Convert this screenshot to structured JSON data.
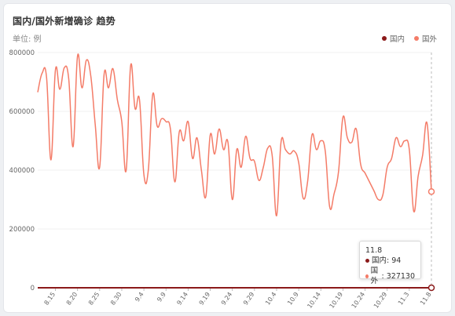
{
  "title": "国内/国外新增确诊 趋势",
  "unit_label": "单位: 例",
  "legend": [
    {
      "label": "国内",
      "color": "#8b1a1a"
    },
    {
      "label": "国外",
      "color": "#f47c68"
    }
  ],
  "tooltip": {
    "date": "11.8",
    "rows": [
      {
        "label": "国内",
        "value": "94",
        "color": "#8b1a1a"
      },
      {
        "label": "国外",
        "value": "327130",
        "color": "#f47c68"
      }
    ]
  },
  "chart_data": {
    "type": "line",
    "title": "国内/国外新增确诊 趋势",
    "ylabel": "单位: 例",
    "ylim": [
      0,
      800000
    ],
    "yticks": [
      0,
      200000,
      400000,
      600000,
      800000
    ],
    "xtick_labels": [
      "8.15",
      "8.20",
      "8.25",
      "8.30",
      "9.4",
      "9.9",
      "9.14",
      "9.19",
      "9.24",
      "9.29",
      "10.4",
      "10.9",
      "10.14",
      "10.19",
      "10.24",
      "10.29",
      "11.3",
      "11.8"
    ],
    "x": [
      "8.11",
      "8.12",
      "8.13",
      "8.14",
      "8.15",
      "8.16",
      "8.17",
      "8.18",
      "8.19",
      "8.20",
      "8.21",
      "8.22",
      "8.23",
      "8.24",
      "8.25",
      "8.26",
      "8.27",
      "8.28",
      "8.29",
      "8.30",
      "8.31",
      "9.1",
      "9.2",
      "9.3",
      "9.4",
      "9.5",
      "9.6",
      "9.7",
      "9.8",
      "9.9",
      "9.10",
      "9.11",
      "9.12",
      "9.13",
      "9.14",
      "9.15",
      "9.16",
      "9.17",
      "9.18",
      "9.19",
      "9.20",
      "9.21",
      "9.22",
      "9.23",
      "9.24",
      "9.25",
      "9.26",
      "9.27",
      "9.28",
      "9.29",
      "9.30",
      "10.1",
      "10.2",
      "10.3",
      "10.4",
      "10.5",
      "10.6",
      "10.7",
      "10.8",
      "10.9",
      "10.10",
      "10.11",
      "10.12",
      "10.13",
      "10.14",
      "10.15",
      "10.16",
      "10.17",
      "10.18",
      "10.19",
      "10.20",
      "10.21",
      "10.22",
      "10.23",
      "10.24",
      "10.25",
      "10.26",
      "10.27",
      "10.28",
      "10.29",
      "10.30",
      "10.31",
      "11.1",
      "11.2",
      "11.3",
      "11.4",
      "11.5",
      "11.6",
      "11.7",
      "11.8"
    ],
    "series": [
      {
        "name": "国内",
        "color": "#8b1a1a",
        "values": [
          60,
          55,
          70,
          48,
          62,
          53,
          58,
          71,
          65,
          80,
          56,
          49,
          60,
          66,
          70,
          61,
          52,
          58,
          63,
          77,
          82,
          69,
          57,
          60,
          72,
          66,
          55,
          48,
          61,
          50,
          43,
          58,
          51,
          47,
          62,
          70,
          55,
          49,
          68,
          73,
          64,
          59,
          51,
          60,
          66,
          57,
          63,
          70,
          74,
          68,
          80,
          76,
          62,
          58,
          71,
          66,
          80,
          77,
          69,
          84,
          73,
          90,
          81,
          85,
          78,
          96,
          88,
          72,
          79,
          87,
          91,
          83,
          95,
          99,
          88,
          84,
          90,
          86,
          97,
          102,
          93,
          89,
          98,
          104,
          92,
          87,
          95,
          100,
          91,
          94
        ]
      },
      {
        "name": "国外",
        "color": "#f47c68",
        "values": [
          665000,
          730000,
          715000,
          435000,
          740000,
          675000,
          748000,
          712000,
          480000,
          788000,
          680000,
          774000,
          720000,
          555000,
          410000,
          725000,
          680000,
          745000,
          640000,
          565000,
          400000,
          755000,
          610000,
          640000,
          385000,
          400000,
          658000,
          550000,
          575000,
          565000,
          540000,
          360000,
          530000,
          500000,
          565000,
          440000,
          510000,
          400000,
          310000,
          520000,
          455000,
          540000,
          470000,
          495000,
          300000,
          470000,
          410000,
          515000,
          440000,
          430000,
          365000,
          410000,
          475000,
          450000,
          245000,
          495000,
          470000,
          455000,
          465000,
          425000,
          305000,
          360000,
          520000,
          470000,
          500000,
          465000,
          275000,
          320000,
          395000,
          580000,
          510000,
          495000,
          540000,
          420000,
          390000,
          360000,
          330000,
          300000,
          315000,
          410000,
          440000,
          510000,
          480000,
          500000,
          470000,
          260000,
          380000,
          450000,
          560000,
          327130
        ]
      }
    ],
    "grid": true,
    "legend_position": "top-right"
  }
}
